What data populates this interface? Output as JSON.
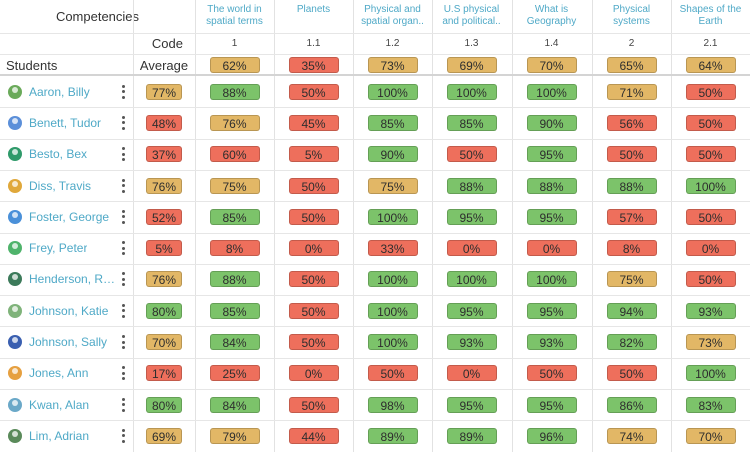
{
  "header": {
    "competencies_label": "Competencies",
    "code_label": "Code",
    "students_label": "Students",
    "average_label": "Average"
  },
  "competencies": [
    {
      "name": "The world in spatial terms",
      "code": "1",
      "average": "62%",
      "avg_status": "yellow"
    },
    {
      "name": "Planets",
      "code": "1.1",
      "average": "35%",
      "avg_status": "red"
    },
    {
      "name": "Physical and spatial organ..",
      "code": "1.2",
      "average": "73%",
      "avg_status": "yellow"
    },
    {
      "name": "U.S physical and political..",
      "code": "1.3",
      "average": "69%",
      "avg_status": "yellow"
    },
    {
      "name": "What is Geography",
      "code": "1.4",
      "average": "70%",
      "avg_status": "yellow"
    },
    {
      "name": "Physical systems",
      "code": "2",
      "average": "65%",
      "avg_status": "yellow"
    },
    {
      "name": "Shapes of the Earth",
      "code": "2.1",
      "average": "64%",
      "avg_status": "yellow"
    }
  ],
  "students": [
    {
      "name": "Aaron, Billy",
      "avatar": "#6aaa5a",
      "average": {
        "v": "77%",
        "s": "yellow"
      },
      "scores": [
        {
          "v": "88%",
          "s": "green"
        },
        {
          "v": "50%",
          "s": "red"
        },
        {
          "v": "100%",
          "s": "green"
        },
        {
          "v": "100%",
          "s": "green"
        },
        {
          "v": "100%",
          "s": "green"
        },
        {
          "v": "71%",
          "s": "yellow"
        },
        {
          "v": "50%",
          "s": "red"
        }
      ]
    },
    {
      "name": "Benett, Tudor",
      "avatar": "#5b8fd9",
      "average": {
        "v": "48%",
        "s": "red"
      },
      "scores": [
        {
          "v": "76%",
          "s": "yellow"
        },
        {
          "v": "45%",
          "s": "red"
        },
        {
          "v": "85%",
          "s": "green"
        },
        {
          "v": "85%",
          "s": "green"
        },
        {
          "v": "90%",
          "s": "green"
        },
        {
          "v": "56%",
          "s": "red"
        },
        {
          "v": "50%",
          "s": "red"
        }
      ]
    },
    {
      "name": "Besto, Bex",
      "avatar": "#2f9a6a",
      "average": {
        "v": "37%",
        "s": "red"
      },
      "scores": [
        {
          "v": "60%",
          "s": "red"
        },
        {
          "v": "5%",
          "s": "red"
        },
        {
          "v": "90%",
          "s": "green"
        },
        {
          "v": "50%",
          "s": "red"
        },
        {
          "v": "95%",
          "s": "green"
        },
        {
          "v": "50%",
          "s": "red"
        },
        {
          "v": "50%",
          "s": "red"
        }
      ]
    },
    {
      "name": "Diss, Travis",
      "avatar": "#e0a83a",
      "average": {
        "v": "76%",
        "s": "yellow"
      },
      "scores": [
        {
          "v": "75%",
          "s": "yellow"
        },
        {
          "v": "50%",
          "s": "red"
        },
        {
          "v": "75%",
          "s": "yellow"
        },
        {
          "v": "88%",
          "s": "green"
        },
        {
          "v": "88%",
          "s": "green"
        },
        {
          "v": "88%",
          "s": "green"
        },
        {
          "v": "100%",
          "s": "green"
        }
      ]
    },
    {
      "name": "Foster, George",
      "avatar": "#4a90d9",
      "average": {
        "v": "52%",
        "s": "red"
      },
      "scores": [
        {
          "v": "85%",
          "s": "green"
        },
        {
          "v": "50%",
          "s": "red"
        },
        {
          "v": "100%",
          "s": "green"
        },
        {
          "v": "95%",
          "s": "green"
        },
        {
          "v": "95%",
          "s": "green"
        },
        {
          "v": "57%",
          "s": "red"
        },
        {
          "v": "50%",
          "s": "red"
        }
      ]
    },
    {
      "name": "Frey, Peter",
      "avatar": "#4fb36b",
      "average": {
        "v": "5%",
        "s": "red"
      },
      "scores": [
        {
          "v": "8%",
          "s": "red"
        },
        {
          "v": "0%",
          "s": "red"
        },
        {
          "v": "33%",
          "s": "red"
        },
        {
          "v": "0%",
          "s": "red"
        },
        {
          "v": "0%",
          "s": "red"
        },
        {
          "v": "8%",
          "s": "red"
        },
        {
          "v": "0%",
          "s": "red"
        }
      ]
    },
    {
      "name": "Henderson, Rox..",
      "avatar": "#3c7a5a",
      "average": {
        "v": "76%",
        "s": "yellow"
      },
      "scores": [
        {
          "v": "88%",
          "s": "green"
        },
        {
          "v": "50%",
          "s": "red"
        },
        {
          "v": "100%",
          "s": "green"
        },
        {
          "v": "100%",
          "s": "green"
        },
        {
          "v": "100%",
          "s": "green"
        },
        {
          "v": "75%",
          "s": "yellow"
        },
        {
          "v": "50%",
          "s": "red"
        }
      ]
    },
    {
      "name": "Johnson, Katie",
      "avatar": "#7fb37a",
      "average": {
        "v": "80%",
        "s": "green"
      },
      "scores": [
        {
          "v": "85%",
          "s": "green"
        },
        {
          "v": "50%",
          "s": "red"
        },
        {
          "v": "100%",
          "s": "green"
        },
        {
          "v": "95%",
          "s": "green"
        },
        {
          "v": "95%",
          "s": "green"
        },
        {
          "v": "94%",
          "s": "green"
        },
        {
          "v": "93%",
          "s": "green"
        }
      ]
    },
    {
      "name": "Johnson, Sally",
      "avatar": "#3a5fb0",
      "average": {
        "v": "70%",
        "s": "yellow"
      },
      "scores": [
        {
          "v": "84%",
          "s": "green"
        },
        {
          "v": "50%",
          "s": "red"
        },
        {
          "v": "100%",
          "s": "green"
        },
        {
          "v": "93%",
          "s": "green"
        },
        {
          "v": "93%",
          "s": "green"
        },
        {
          "v": "82%",
          "s": "green"
        },
        {
          "v": "73%",
          "s": "yellow"
        }
      ]
    },
    {
      "name": "Jones, Ann",
      "avatar": "#e6a040",
      "average": {
        "v": "17%",
        "s": "red"
      },
      "scores": [
        {
          "v": "25%",
          "s": "red"
        },
        {
          "v": "0%",
          "s": "red"
        },
        {
          "v": "50%",
          "s": "red"
        },
        {
          "v": "0%",
          "s": "red"
        },
        {
          "v": "50%",
          "s": "red"
        },
        {
          "v": "50%",
          "s": "red"
        },
        {
          "v": "100%",
          "s": "green"
        }
      ]
    },
    {
      "name": "Kwan, Alan",
      "avatar": "#6aa8c8",
      "average": {
        "v": "80%",
        "s": "green"
      },
      "scores": [
        {
          "v": "84%",
          "s": "green"
        },
        {
          "v": "50%",
          "s": "red"
        },
        {
          "v": "98%",
          "s": "green"
        },
        {
          "v": "95%",
          "s": "green"
        },
        {
          "v": "95%",
          "s": "green"
        },
        {
          "v": "86%",
          "s": "green"
        },
        {
          "v": "83%",
          "s": "green"
        }
      ]
    },
    {
      "name": "Lim, Adrian",
      "avatar": "#5a8a5a",
      "average": {
        "v": "69%",
        "s": "yellow"
      },
      "scores": [
        {
          "v": "79%",
          "s": "yellow"
        },
        {
          "v": "44%",
          "s": "red"
        },
        {
          "v": "89%",
          "s": "green"
        },
        {
          "v": "89%",
          "s": "green"
        },
        {
          "v": "96%",
          "s": "green"
        },
        {
          "v": "74%",
          "s": "yellow"
        },
        {
          "v": "70%",
          "s": "yellow"
        }
      ]
    }
  ],
  "colors": {
    "green": "#7cc36a",
    "yellow": "#e2b766",
    "red": "#ee6f5c",
    "link": "#4fa9c7"
  }
}
